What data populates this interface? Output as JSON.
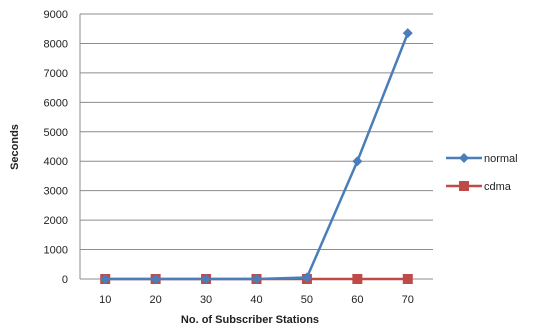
{
  "chart_data": {
    "type": "line",
    "title": "",
    "xlabel": "No. of Subscriber Stations",
    "ylabel": "Seconds",
    "categories": [
      "10",
      "20",
      "30",
      "40",
      "50",
      "60",
      "70"
    ],
    "ylim": [
      0,
      9000
    ],
    "yticks": [
      0,
      1000,
      2000,
      3000,
      4000,
      5000,
      6000,
      7000,
      8000,
      9000
    ],
    "grid": true,
    "legend_position": "right",
    "series": [
      {
        "name": "normal",
        "values": [
          0,
          0,
          0,
          0,
          50,
          4000,
          8350
        ],
        "color": "#4a7ebb",
        "marker": "diamond"
      },
      {
        "name": "cdma",
        "values": [
          0,
          0,
          0,
          0,
          0,
          0,
          0
        ],
        "color": "#be4b48",
        "marker": "square"
      }
    ]
  }
}
